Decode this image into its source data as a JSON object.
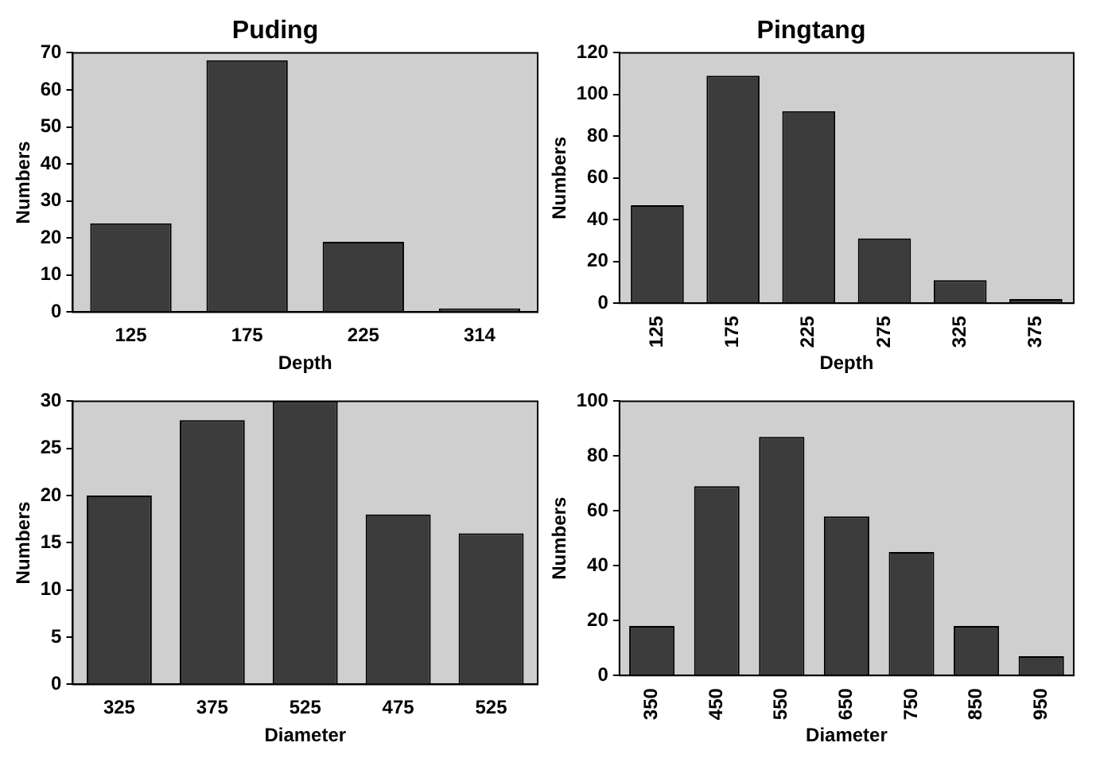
{
  "chart_data": [
    {
      "type": "bar",
      "title": "Puding",
      "xlabel": "Depth",
      "ylabel": "Numbers",
      "categories": [
        "125",
        "175",
        "225",
        "314"
      ],
      "values": [
        24,
        68,
        19,
        1
      ],
      "color": "#3c3c3c",
      "ylim": [
        0,
        70
      ],
      "yticks": [
        0,
        10,
        20,
        30,
        40,
        50,
        60,
        70
      ],
      "grid": false,
      "legend": false
    },
    {
      "type": "bar",
      "title": "Pingtang",
      "xlabel": "Depth",
      "ylabel": "Numbers",
      "categories": [
        "125",
        "175",
        "225",
        "275",
        "325",
        "375"
      ],
      "values": [
        47,
        109,
        92,
        31,
        11,
        2
      ],
      "color": "#3c3c3c",
      "ylim": [
        0,
        120
      ],
      "yticks": [
        0,
        20,
        40,
        60,
        80,
        100,
        120
      ],
      "grid": false,
      "legend": false
    },
    {
      "type": "bar",
      "xlabel": "Diameter",
      "ylabel": "Numbers",
      "categories": [
        "325",
        "375",
        "525",
        "475",
        "525"
      ],
      "values": [
        20,
        28,
        30,
        18,
        16
      ],
      "color": "#3c3c3c",
      "ylim": [
        0,
        30
      ],
      "yticks": [
        0,
        5,
        10,
        15,
        20,
        25,
        30
      ],
      "grid": false,
      "legend": false
    },
    {
      "type": "bar",
      "xlabel": "Diameter",
      "ylabel": "Numbers",
      "categories": [
        "350",
        "450",
        "550",
        "650",
        "750",
        "850",
        "950"
      ],
      "values": [
        18,
        69,
        87,
        58,
        45,
        18,
        7
      ],
      "color": "#3c3c3c",
      "ylim": [
        0,
        100
      ],
      "yticks": [
        0,
        20,
        40,
        60,
        80,
        100
      ],
      "grid": false,
      "legend": false
    }
  ]
}
